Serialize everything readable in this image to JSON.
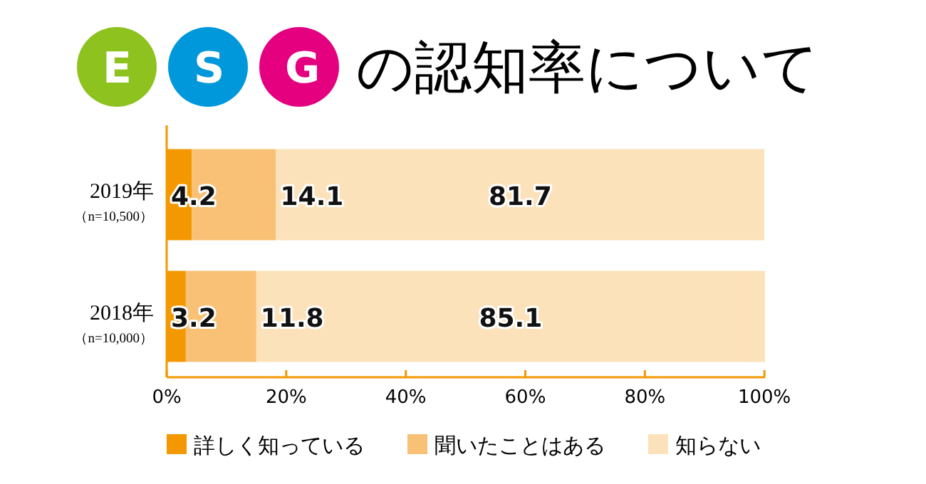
{
  "chart_data": {
    "type": "bar",
    "orientation": "horizontal",
    "stacked": true,
    "title": "E S Gの認知率について",
    "categories": [
      "2019年（n=10,500）",
      "2018年（n=10,000）"
    ],
    "series": [
      {
        "name": "詳しく知っている",
        "color": "#f39800",
        "values": [
          4.2,
          3.2
        ]
      },
      {
        "name": "聞いたことはある",
        "color": "#f8c175",
        "values": [
          14.1,
          11.8
        ]
      },
      {
        "name": "知らない",
        "color": "#fce2ba",
        "values": [
          81.7,
          85.1
        ]
      }
    ],
    "xlim": [
      0,
      100.1
    ],
    "xticks": [
      {
        "value": 0,
        "label": "0%"
      },
      {
        "value": 20,
        "label": "20%"
      },
      {
        "value": 40,
        "label": "40%"
      },
      {
        "value": 60,
        "label": "60%"
      },
      {
        "value": 80,
        "label": "80%"
      },
      {
        "value": 100,
        "label": "100%"
      }
    ],
    "data_labels": true,
    "legend": "bottom"
  }
}
